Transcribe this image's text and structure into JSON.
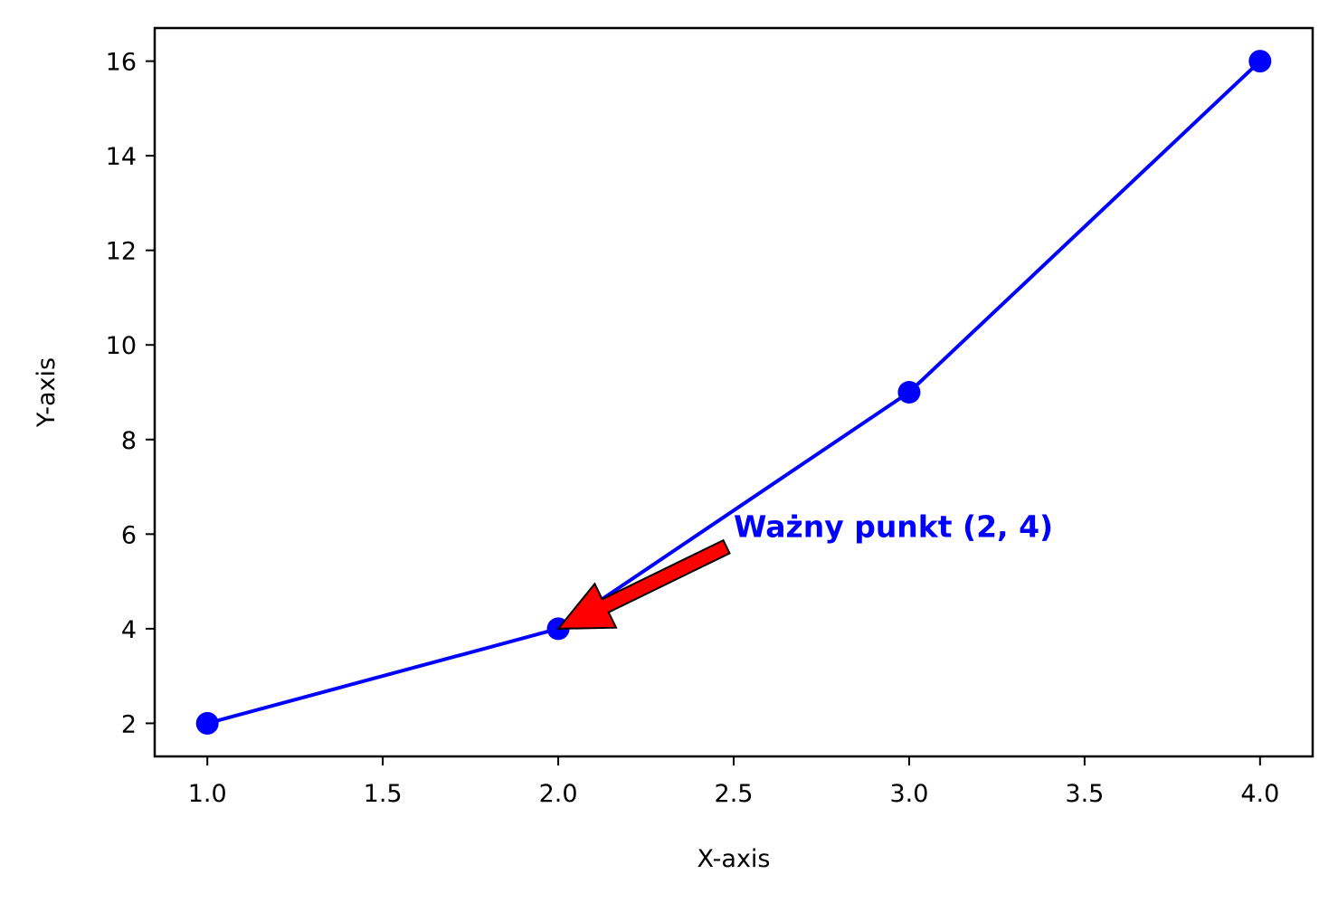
{
  "chart_data": {
    "type": "line",
    "title": "",
    "xlabel": "X-axis",
    "ylabel": "Y-axis",
    "x": [
      1,
      2,
      3,
      4
    ],
    "series": [
      {
        "values": [
          2,
          4,
          9,
          16
        ],
        "color": "#0000ff",
        "marker": "circle"
      }
    ],
    "xlim": [
      0.85,
      4.15
    ],
    "ylim": [
      1.3,
      16.7
    ],
    "xticks": [
      1.0,
      1.5,
      2.0,
      2.5,
      3.0,
      3.5,
      4.0
    ],
    "xtick_labels": [
      "1.0",
      "1.5",
      "2.0",
      "2.5",
      "3.0",
      "3.5",
      "4.0"
    ],
    "yticks": [
      2,
      4,
      6,
      8,
      10,
      12,
      14,
      16
    ],
    "ytick_labels": [
      "2",
      "4",
      "6",
      "8",
      "10",
      "12",
      "14",
      "16"
    ],
    "grid": false,
    "legend": "none",
    "annotation": {
      "text": "Ważny punkt (2, 4)",
      "point": [
        2,
        4
      ],
      "text_pos": [
        2.5,
        6
      ],
      "text_color": "#0000ff",
      "arrow_color": "#ff0000"
    }
  }
}
